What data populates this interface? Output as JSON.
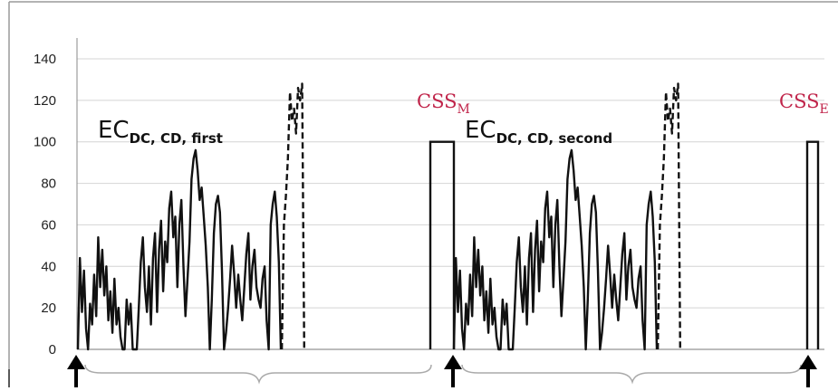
{
  "colors": {
    "css_label": "#c0244a",
    "grid": "#d4d4d4",
    "trace": "#111111"
  },
  "chart_data": {
    "type": "line",
    "title": "",
    "xlabel": "",
    "ylabel": "",
    "ylim": [
      0,
      140
    ],
    "yticks": [
      0,
      20,
      40,
      60,
      80,
      100,
      120,
      140
    ],
    "grid": true,
    "legend": "none",
    "annotations": {
      "segment_first": {
        "main": "EC",
        "sub": "DC, CD, first"
      },
      "segment_second": {
        "main": "EC",
        "sub": "DC, CD, second"
      },
      "css_m": {
        "main": "CSS",
        "sub": "M"
      },
      "css_e": {
        "main": "CSS",
        "sub": "E"
      }
    },
    "series": [
      {
        "style": "solid",
        "segment": "first",
        "x": [
          0,
          2,
          4,
          6,
          8,
          10,
          12,
          14,
          16,
          18,
          20,
          22,
          24,
          26,
          28,
          30,
          32,
          34,
          36,
          38,
          40,
          42,
          44,
          46,
          48,
          50,
          52,
          54,
          56,
          58,
          60,
          62,
          64,
          66,
          68,
          70,
          72,
          74,
          76,
          78,
          80,
          82,
          84,
          86,
          88,
          90,
          92,
          94,
          96,
          98,
          100,
          102,
          104,
          106,
          108,
          110,
          112,
          114,
          116,
          118,
          120,
          122,
          124,
          126,
          128,
          130,
          132,
          134,
          136,
          138,
          140,
          142,
          144,
          146,
          148,
          150,
          152,
          154,
          156,
          158,
          160,
          162,
          164,
          166,
          168,
          170,
          172,
          174,
          176,
          178,
          180,
          182,
          184,
          186,
          188,
          190,
          192,
          194,
          196,
          198,
          200
        ],
        "y": [
          0,
          44,
          18,
          38,
          10,
          0,
          22,
          12,
          36,
          16,
          54,
          30,
          48,
          26,
          40,
          14,
          28,
          8,
          34,
          12,
          20,
          6,
          0,
          0,
          24,
          12,
          22,
          0,
          0,
          0,
          20,
          42,
          54,
          30,
          18,
          40,
          12,
          44,
          56,
          18,
          48,
          62,
          28,
          52,
          42,
          68,
          76,
          54,
          64,
          30,
          60,
          72,
          40,
          16,
          34,
          52,
          82,
          92,
          96,
          86,
          72,
          78,
          64,
          50,
          30,
          0,
          24,
          56,
          70,
          74,
          66,
          38,
          0,
          8,
          20,
          34,
          50,
          36,
          20,
          36,
          24,
          14,
          30,
          46,
          56,
          24,
          40,
          48,
          30,
          24,
          20,
          34,
          40,
          14,
          0,
          60,
          70,
          76,
          64,
          42,
          0
        ]
      },
      {
        "style": "dashed",
        "segment": "first",
        "x": [
          201,
          203,
          205,
          207,
          209,
          211,
          213,
          215,
          217,
          219,
          221,
          223
        ],
        "y": [
          0,
          60,
          74,
          92,
          124,
          110,
          116,
          104,
          126,
          120,
          128,
          0
        ]
      },
      {
        "style": "solid",
        "segment": "second",
        "x": [
          0,
          2,
          4,
          6,
          8,
          10,
          12,
          14,
          16,
          18,
          20,
          22,
          24,
          26,
          28,
          30,
          32,
          34,
          36,
          38,
          40,
          42,
          44,
          46,
          48,
          50,
          52,
          54,
          56,
          58,
          60,
          62,
          64,
          66,
          68,
          70,
          72,
          74,
          76,
          78,
          80,
          82,
          84,
          86,
          88,
          90,
          92,
          94,
          96,
          98,
          100,
          102,
          104,
          106,
          108,
          110,
          112,
          114,
          116,
          118,
          120,
          122,
          124,
          126,
          128,
          130,
          132,
          134,
          136,
          138,
          140,
          142,
          144,
          146,
          148,
          150,
          152,
          154,
          156,
          158,
          160,
          162,
          164,
          166,
          168,
          170,
          172,
          174,
          176,
          178,
          180,
          182,
          184,
          186,
          188,
          190,
          192,
          194,
          196,
          198,
          200
        ],
        "y": [
          0,
          44,
          18,
          38,
          10,
          0,
          22,
          12,
          36,
          16,
          54,
          30,
          48,
          26,
          40,
          14,
          28,
          8,
          34,
          12,
          20,
          6,
          0,
          0,
          24,
          12,
          22,
          0,
          0,
          0,
          20,
          42,
          54,
          30,
          18,
          40,
          12,
          44,
          56,
          18,
          48,
          62,
          28,
          52,
          42,
          68,
          76,
          54,
          64,
          30,
          60,
          72,
          40,
          16,
          34,
          52,
          82,
          92,
          96,
          86,
          72,
          78,
          64,
          50,
          30,
          0,
          24,
          56,
          70,
          74,
          66,
          38,
          0,
          8,
          20,
          34,
          50,
          36,
          20,
          36,
          24,
          14,
          30,
          46,
          56,
          24,
          40,
          48,
          30,
          24,
          20,
          34,
          40,
          14,
          0,
          60,
          70,
          76,
          64,
          42,
          0
        ]
      },
      {
        "style": "dashed",
        "segment": "second",
        "x": [
          201,
          203,
          205,
          207,
          209,
          211,
          213,
          215,
          217,
          219,
          221,
          223
        ],
        "y": [
          0,
          60,
          74,
          92,
          124,
          110,
          116,
          104,
          126,
          120,
          128,
          0
        ]
      }
    ],
    "steady_state_blocks": [
      {
        "label": "CSS_M",
        "value": 100
      },
      {
        "label": "CSS_E",
        "value": 100
      }
    ]
  }
}
